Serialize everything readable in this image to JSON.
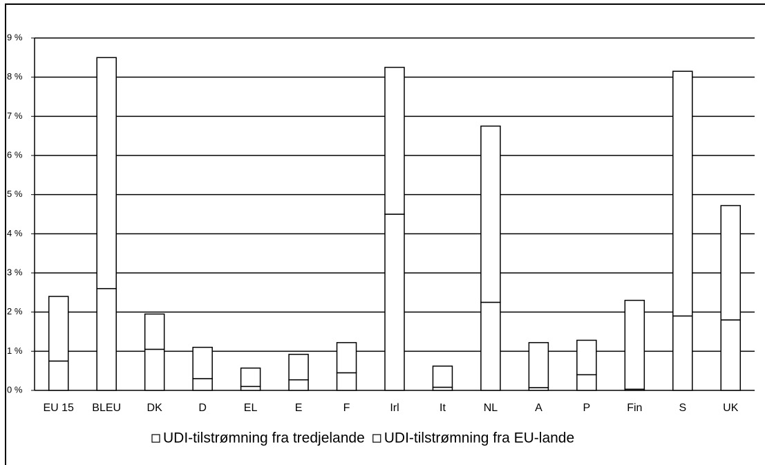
{
  "chart_data": {
    "type": "stacked_bar",
    "categories": [
      "EU 15",
      "BLEU",
      "DK",
      "D",
      "EL",
      "E",
      "F",
      "Irl",
      "It",
      "NL",
      "A",
      "P",
      "Fin",
      "S",
      "UK"
    ],
    "series": [
      {
        "name": "UDI-tilstrømning fra tredjelande",
        "color": "#ffffff",
        "values": [
          0.75,
          2.6,
          1.05,
          0.3,
          0.1,
          0.27,
          0.45,
          4.5,
          0.08,
          2.25,
          0.07,
          0.4,
          0.03,
          1.9,
          1.8
        ]
      },
      {
        "name": "UDI-tilstrømning fra EU-lande",
        "color": "#ffffff",
        "values": [
          1.65,
          5.9,
          0.9,
          0.8,
          0.47,
          0.65,
          0.77,
          3.75,
          0.54,
          4.5,
          1.15,
          0.88,
          2.27,
          6.25,
          2.92
        ]
      }
    ],
    "ylim": [
      0,
      9
    ],
    "yticks": [
      {
        "value": 0,
        "label": "0 %"
      },
      {
        "value": 1,
        "label": "1 %"
      },
      {
        "value": 2,
        "label": "2 %"
      },
      {
        "value": 3,
        "label": "3 %"
      },
      {
        "value": 4,
        "label": "4 %"
      },
      {
        "value": 5,
        "label": "5 %"
      },
      {
        "value": 6,
        "label": "6 %"
      },
      {
        "value": 7,
        "label": "7 %"
      },
      {
        "value": 8,
        "label": "8 %"
      },
      {
        "value": 9,
        "label": "9 %"
      }
    ],
    "grid": true,
    "legend": "bottom"
  }
}
